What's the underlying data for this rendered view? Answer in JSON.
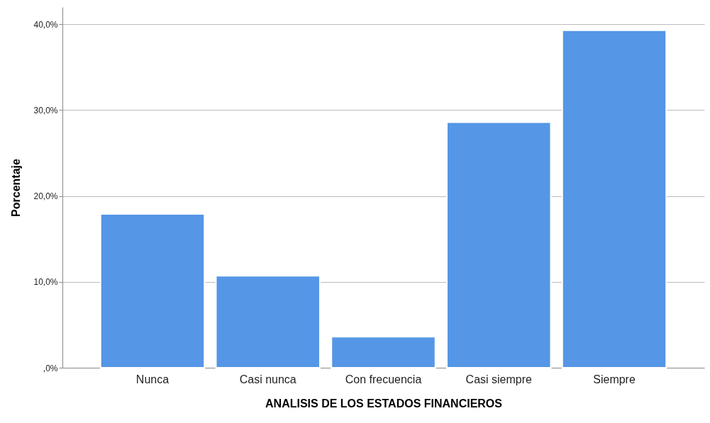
{
  "chart_data": {
    "type": "bar",
    "xlabel": "ANALISIS DE LOS ESTADOS FINANCIEROS",
    "ylabel": "Porcentaje",
    "categories": [
      "Nunca",
      "Casi nunca",
      "Con frecuencia",
      "Casi siempre",
      "Siempre"
    ],
    "values": [
      17.9,
      10.7,
      3.6,
      28.6,
      39.3
    ],
    "color": "#5596e6",
    "ylim": [
      0,
      42
    ],
    "yticks": [
      {
        "value": 0,
        "label": ",0%"
      },
      {
        "value": 10,
        "label": "10,0%"
      },
      {
        "value": 20,
        "label": "20,0%"
      },
      {
        "value": 30,
        "label": "30,0%"
      },
      {
        "value": 40,
        "label": "40,0%"
      }
    ],
    "grid": "y"
  }
}
